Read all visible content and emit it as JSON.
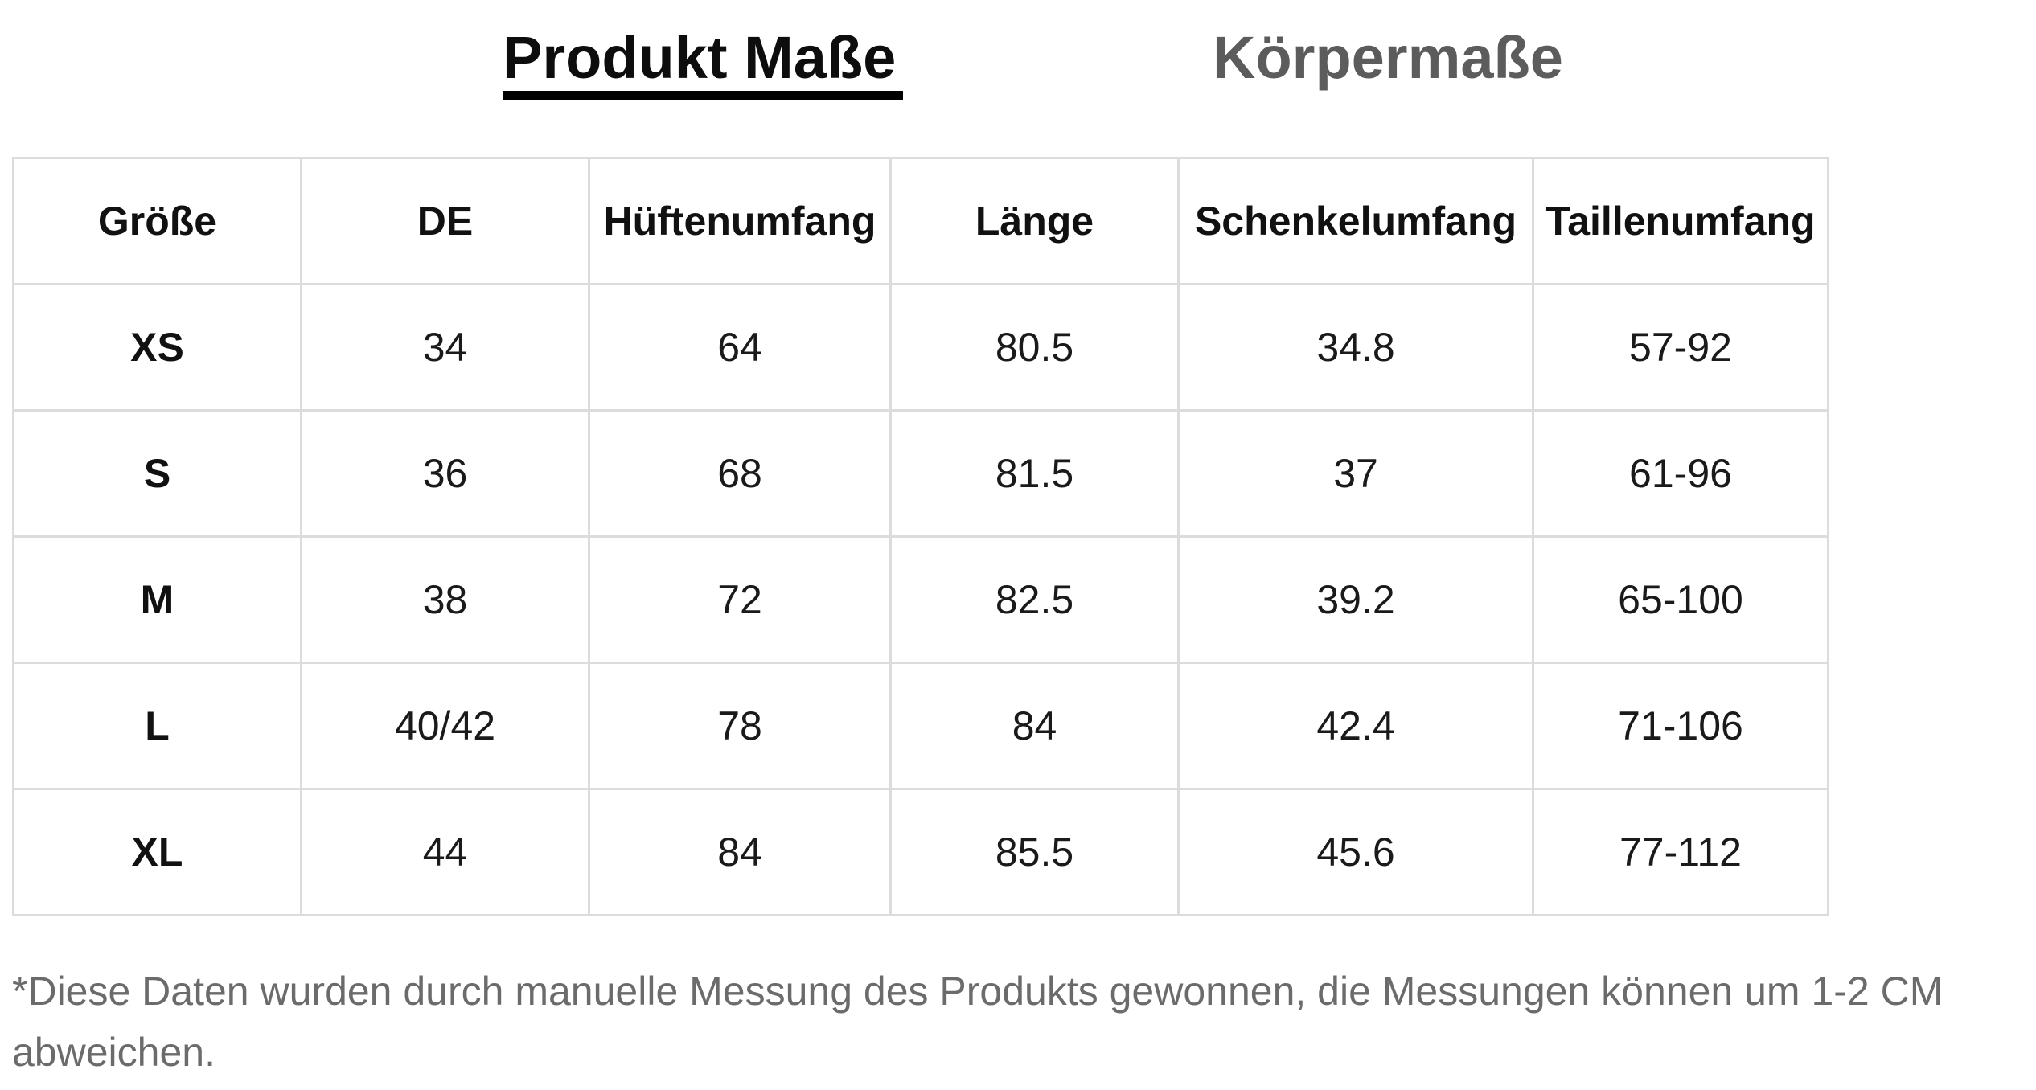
{
  "tabs": {
    "active_label": "Produkt Maße",
    "inactive_label": "Körpermaße"
  },
  "table": {
    "headers": [
      "Größe",
      "DE",
      "Hüftenumfang",
      "Länge",
      "Schenkelumfang",
      "Taillenumfang"
    ],
    "rows": [
      [
        "XS",
        "34",
        "64",
        "80.5",
        "34.8",
        "57-92"
      ],
      [
        "S",
        "36",
        "68",
        "81.5",
        "37",
        "61-96"
      ],
      [
        "M",
        "38",
        "72",
        "82.5",
        "39.2",
        "65-100"
      ],
      [
        "L",
        "40/42",
        "78",
        "84",
        "42.4",
        "71-106"
      ],
      [
        "XL",
        "44",
        "84",
        "85.5",
        "45.6",
        "77-112"
      ]
    ]
  },
  "note": {
    "text": "*Diese Daten wurden durch manuelle Messung des Produkts gewonnen, die Messungen können um 1-2 CM abweichen."
  }
}
